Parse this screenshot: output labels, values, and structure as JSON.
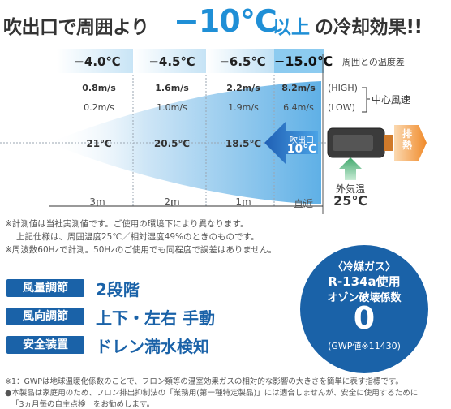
{
  "headline": {
    "prefix": "吹出口で周囲より",
    "big": "−10℃",
    "middle": "以上",
    "suffix": "の冷却効果!!"
  },
  "temps": [
    {
      "label": "−4.0℃"
    },
    {
      "label": "−4.5℃"
    },
    {
      "label": "−6.5℃"
    },
    {
      "label": "−15.0℃"
    }
  ],
  "temp_diff_label": "周囲との温度差",
  "wind_high": [
    "0.8m/s",
    "1.6m/s",
    "2.2m/s",
    "8.2m/s"
  ],
  "wind_low": [
    "0.2m/s",
    "1.0m/s",
    "1.9m/s",
    "6.4m/s"
  ],
  "mode_high": "(HIGH)",
  "mode_low": "(LOW)",
  "center_wind": "中心風速",
  "air_temps": [
    "21℃",
    "20.5℃",
    "18.5℃"
  ],
  "outlet": {
    "label": "吹出口",
    "temp": "10℃"
  },
  "exhaust": "排熱",
  "outside_air": {
    "label": "外気温",
    "temp": "25℃"
  },
  "distances": [
    "3m",
    "2m",
    "1m",
    "直近"
  ],
  "notes": [
    "※計測値は当社実測値です。ご使用の環境下により異なります。",
    "上記仕様は、周囲温度25℃／相対湿度49%のときのものです。",
    "※周波数60Hzで計測。50Hzのご使用でも同程度で誤差はありません。"
  ],
  "specs": [
    {
      "label": "風量調節",
      "value": "2段階"
    },
    {
      "label": "風向調節",
      "value": "上下・左右 手動"
    },
    {
      "label": "安全装置",
      "value": "ドレン満水検知"
    }
  ],
  "gas": {
    "title": "〈冷媒ガス〉",
    "name": "R-134a使用",
    "sub": "オゾン破壊係数",
    "value": "0",
    "gwp": "(GWP値※11430)"
  },
  "footnotes": [
    "※1：GWPは地球温暖化係数のことで、フロン類等の温室効果ガスの相対的な影響の大きさを簡単に表す指標です。",
    "●本製品は家庭用のため、フロン排出抑制法の「業務用(第一種特定製品)」には適合しませんが、安全に使用するために",
    "「3ヵ月毎の自主点検」をお勧めします。"
  ],
  "colors": {
    "accent": "#1f8fd6",
    "spec_blue": "#1a62a8",
    "exhaust_orange": "#f29a3c",
    "intake_green": "#4caf7a"
  }
}
